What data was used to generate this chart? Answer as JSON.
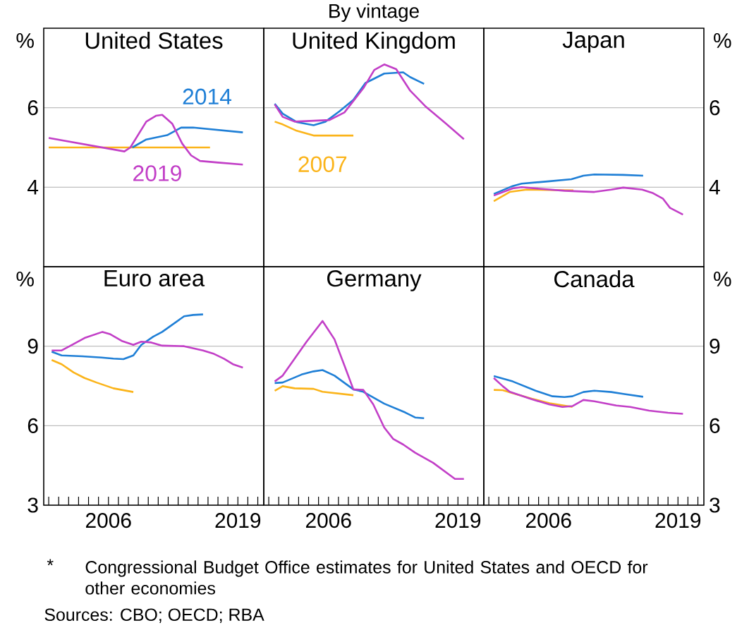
{
  "chart_data": [
    {
      "type": "line",
      "title": "United States",
      "ylabel": "%",
      "xlim": [
        1999.5,
        2021.6
      ],
      "ylim": [
        2,
        8
      ],
      "yticks": [
        4,
        6
      ],
      "grid": "y",
      "tick_labels": "y",
      "series": [
        {
          "color": "#fbb41a",
          "x": [
            2000,
            2016.2
          ],
          "values": [
            5.0,
            5.0
          ]
        },
        {
          "name": "2014",
          "color": "#1f7fd6",
          "x": [
            2008.4,
            2009.8,
            2011.9,
            2013.3,
            2014.5,
            2019.5
          ],
          "values": [
            5.0,
            5.2,
            5.31,
            5.5,
            5.5,
            5.38
          ]
        },
        {
          "name": "2019",
          "color": "#c23fc7",
          "x": [
            2000,
            2007.6,
            2008.2,
            2009.8,
            2010.8,
            2011.4,
            2012.4,
            2013.4,
            2014.3,
            2015.2,
            2017,
            2019.5
          ],
          "values": [
            5.24,
            4.9,
            5.0,
            5.65,
            5.8,
            5.82,
            5.6,
            5.1,
            4.8,
            4.66,
            4.62,
            4.57
          ]
        }
      ]
    },
    {
      "type": "line",
      "title": "United Kingdom",
      "annotations": [
        "By vintage"
      ],
      "xlim": [
        1999.5,
        2021.6
      ],
      "ylim": [
        2,
        8
      ],
      "yticks": [
        4,
        6
      ],
      "grid": "y",
      "tick_labels": false,
      "series": [
        {
          "name": "2007",
          "color": "#fbb41a",
          "x": [
            2000.6,
            2001.4,
            2002.8,
            2004.5,
            2008.5
          ],
          "values": [
            5.65,
            5.58,
            5.42,
            5.3,
            5.3
          ]
        },
        {
          "color": "#1f7fd6",
          "x": [
            2000.6,
            2001.4,
            2002.8,
            2004.5,
            2005.7,
            2007.1,
            2008.5,
            2009.7,
            2011.6,
            2013.5,
            2014.2,
            2015.6
          ],
          "values": [
            6.1,
            5.85,
            5.64,
            5.56,
            5.65,
            5.91,
            6.2,
            6.62,
            6.86,
            6.89,
            6.77,
            6.6
          ]
        },
        {
          "color": "#c23fc7",
          "x": [
            2000.6,
            2001.4,
            2002.6,
            2006.1,
            2007.6,
            2009.5,
            2010.6,
            2011.6,
            2012.8,
            2014.2,
            2015.8,
            2017.7,
            2019.6
          ],
          "values": [
            6.08,
            5.77,
            5.65,
            5.69,
            5.88,
            6.49,
            6.95,
            7.09,
            6.97,
            6.43,
            6.02,
            5.62,
            5.21
          ]
        }
      ]
    },
    {
      "type": "line",
      "title": "Japan",
      "ylabel": "%",
      "xlim": [
        1999.5,
        2021.6
      ],
      "ylim": [
        2,
        8
      ],
      "yticks": [
        4,
        6
      ],
      "grid": "y",
      "tick_labels": "y",
      "series": [
        {
          "color": "#fbb41a",
          "x": [
            2000.5,
            2002.1,
            2003.8,
            2008.5
          ],
          "values": [
            3.65,
            3.88,
            3.94,
            3.92
          ]
        },
        {
          "color": "#1f7fd6",
          "x": [
            2000.5,
            2002.4,
            2003.3,
            2006.1,
            2008.3,
            2009.5,
            2010.6,
            2013.5,
            2015.5
          ],
          "values": [
            3.83,
            4.03,
            4.09,
            4.15,
            4.2,
            4.29,
            4.32,
            4.31,
            4.29
          ]
        },
        {
          "color": "#c23fc7",
          "x": [
            2000.5,
            2002.4,
            2003.3,
            2007.6,
            2010.6,
            2012.3,
            2013.5,
            2015.4,
            2016.5,
            2017.5,
            2018.2,
            2019.5
          ],
          "values": [
            3.79,
            3.97,
            4.0,
            3.91,
            3.88,
            3.94,
            3.99,
            3.94,
            3.85,
            3.71,
            3.48,
            3.31
          ]
        }
      ]
    },
    {
      "type": "line",
      "title": "Euro area",
      "ylabel": "%",
      "annotations": [
        "*",
        "Congressional Budget Office estimates for United States and OECD for other economies",
        "Sources: CBO; OECD; RBA"
      ],
      "xlim": [
        1999.5,
        2021.6
      ],
      "ylim": [
        3,
        12
      ],
      "yticks": [
        3,
        6,
        9
      ],
      "grid": "y",
      "xticks": [
        {
          "value": 2000,
          "label": null
        },
        {
          "value": 2001,
          "label": null
        },
        {
          "value": 2002,
          "label": null
        },
        {
          "value": 2003,
          "label": null
        },
        {
          "value": 2004,
          "label": null
        },
        {
          "value": 2005,
          "label": null
        },
        2006,
        {
          "value": 2007,
          "label": null
        },
        {
          "value": 2008,
          "label": null
        },
        {
          "value": 2009,
          "label": null
        },
        {
          "value": 2010,
          "label": null
        },
        {
          "value": 2011,
          "label": null
        },
        {
          "value": 2012,
          "label": null
        },
        {
          "value": 2013,
          "label": null
        },
        {
          "value": 2014,
          "label": null
        },
        {
          "value": 2015,
          "label": null
        },
        {
          "value": 2016,
          "label": null
        },
        {
          "value": 2017,
          "label": null
        },
        {
          "value": 2018,
          "label": null
        },
        2019,
        {
          "value": 2020,
          "label": null
        },
        {
          "value": 2021,
          "label": null
        }
      ],
      "series": [
        {
          "color": "#fbb41a",
          "x": [
            2000.3,
            2001.3,
            2002.5,
            2003.6,
            2004.8,
            2006.5,
            2008.5
          ],
          "values": [
            8.48,
            8.32,
            8.01,
            7.8,
            7.63,
            7.41,
            7.27
          ]
        },
        {
          "color": "#1f7fd6",
          "x": [
            2000.3,
            2001.3,
            2003.4,
            2005.3,
            2006.5,
            2007.5,
            2008.5,
            2009.3,
            2010.5,
            2011.4,
            2013.6,
            2014.5,
            2015.5
          ],
          "values": [
            8.79,
            8.65,
            8.62,
            8.57,
            8.53,
            8.51,
            8.65,
            9.05,
            9.36,
            9.54,
            10.13,
            10.18,
            10.2
          ]
        },
        {
          "color": "#c23fc7",
          "x": [
            2000.3,
            2001.3,
            2002.2,
            2003.6,
            2005.4,
            2006.2,
            2007.4,
            2008.5,
            2009.3,
            2010.3,
            2011.4,
            2013.6,
            2015.5,
            2016.6,
            2017.6,
            2018.5,
            2019.5
          ],
          "values": [
            8.84,
            8.84,
            9.02,
            9.31,
            9.54,
            9.45,
            9.19,
            9.05,
            9.17,
            9.14,
            9.02,
            9.0,
            8.84,
            8.71,
            8.53,
            8.32,
            8.19
          ]
        }
      ]
    },
    {
      "type": "line",
      "title": "Germany",
      "xlim": [
        1999.5,
        2021.6
      ],
      "ylim": [
        3,
        12
      ],
      "yticks": [
        3,
        6,
        9
      ],
      "grid": "y",
      "tick_labels": "x",
      "xticks": [
        {
          "value": 2000,
          "label": null
        },
        {
          "value": 2001,
          "label": null
        },
        {
          "value": 2002,
          "label": null
        },
        {
          "value": 2003,
          "label": null
        },
        {
          "value": 2004,
          "label": null
        },
        {
          "value": 2005,
          "label": null
        },
        2006,
        {
          "value": 2007,
          "label": null
        },
        {
          "value": 2008,
          "label": null
        },
        {
          "value": 2009,
          "label": null
        },
        {
          "value": 2010,
          "label": null
        },
        {
          "value": 2011,
          "label": null
        },
        {
          "value": 2012,
          "label": null
        },
        {
          "value": 2013,
          "label": null
        },
        {
          "value": 2014,
          "label": null
        },
        {
          "value": 2015,
          "label": null
        },
        {
          "value": 2016,
          "label": null
        },
        {
          "value": 2017,
          "label": null
        },
        {
          "value": 2018,
          "label": null
        },
        2019,
        {
          "value": 2020,
          "label": null
        },
        {
          "value": 2021,
          "label": null
        }
      ],
      "series": [
        {
          "color": "#fbb41a",
          "x": [
            2000.6,
            2001.4,
            2002.6,
            2004.5,
            2005.4,
            2008.5
          ],
          "values": [
            7.32,
            7.49,
            7.41,
            7.39,
            7.28,
            7.15
          ]
        },
        {
          "color": "#1f7fd6",
          "x": [
            2000.6,
            2001.4,
            2003.3,
            2004.5,
            2005.4,
            2006.6,
            2008.5,
            2009.5,
            2011.6,
            2013.7,
            2014.7,
            2015.6
          ],
          "values": [
            7.61,
            7.63,
            7.93,
            8.05,
            8.1,
            7.89,
            7.37,
            7.28,
            6.83,
            6.5,
            6.31,
            6.28
          ]
        },
        {
          "color": "#c23fc7",
          "x": [
            2000.6,
            2001.4,
            2002.6,
            2003.8,
            2005.4,
            2006.6,
            2007.6,
            2008.5,
            2009.5,
            2010.5,
            2011.6,
            2012.5,
            2013.5,
            2014.7,
            2016.5,
            2018.7,
            2019.6
          ],
          "values": [
            7.67,
            7.89,
            8.53,
            9.17,
            9.95,
            9.26,
            8.27,
            7.37,
            7.35,
            6.8,
            5.93,
            5.5,
            5.29,
            4.98,
            4.6,
            3.99,
            3.99
          ]
        }
      ]
    },
    {
      "type": "line",
      "title": "Canada",
      "ylabel": "%",
      "xlim": [
        1999.5,
        2021.6
      ],
      "ylim": [
        3,
        12
      ],
      "yticks": [
        3,
        6,
        9
      ],
      "grid": "y",
      "xticks": [
        {
          "value": 2000,
          "label": null
        },
        {
          "value": 2001,
          "label": null
        },
        {
          "value": 2002,
          "label": null
        },
        {
          "value": 2003,
          "label": null
        },
        {
          "value": 2004,
          "label": null
        },
        {
          "value": 2005,
          "label": null
        },
        2006,
        {
          "value": 2007,
          "label": null
        },
        {
          "value": 2008,
          "label": null
        },
        {
          "value": 2009,
          "label": null
        },
        {
          "value": 2010,
          "label": null
        },
        {
          "value": 2011,
          "label": null
        },
        {
          "value": 2012,
          "label": null
        },
        {
          "value": 2013,
          "label": null
        },
        {
          "value": 2014,
          "label": null
        },
        {
          "value": 2015,
          "label": null
        },
        {
          "value": 2016,
          "label": null
        },
        {
          "value": 2017,
          "label": null
        },
        {
          "value": 2018,
          "label": null
        },
        2019,
        {
          "value": 2020,
          "label": null
        },
        {
          "value": 2021,
          "label": null
        }
      ],
      "series": [
        {
          "color": "#fbb41a",
          "x": [
            2000.5,
            2001.4,
            2002.4,
            2004.3,
            2006.1,
            2008.4
          ],
          "values": [
            7.35,
            7.34,
            7.23,
            7.02,
            6.85,
            6.71
          ]
        },
        {
          "color": "#1f7fd6",
          "x": [
            2000.5,
            2002.4,
            2004.7,
            2006.4,
            2007.6,
            2008.4,
            2009.5,
            2010.6,
            2012.3,
            2013.5,
            2015.5
          ],
          "values": [
            7.87,
            7.67,
            7.32,
            7.11,
            7.08,
            7.11,
            7.27,
            7.32,
            7.27,
            7.2,
            7.09
          ]
        },
        {
          "color": "#c23fc7",
          "x": [
            2000.5,
            2001.4,
            2002.1,
            2004.3,
            2006.1,
            2007.4,
            2008.4,
            2009.5,
            2010.6,
            2012.8,
            2014.2,
            2016.1,
            2018,
            2019.5
          ],
          "values": [
            7.8,
            7.49,
            7.28,
            7.0,
            6.8,
            6.71,
            6.74,
            6.97,
            6.92,
            6.76,
            6.71,
            6.57,
            6.49,
            6.45
          ]
        }
      ]
    }
  ]
}
